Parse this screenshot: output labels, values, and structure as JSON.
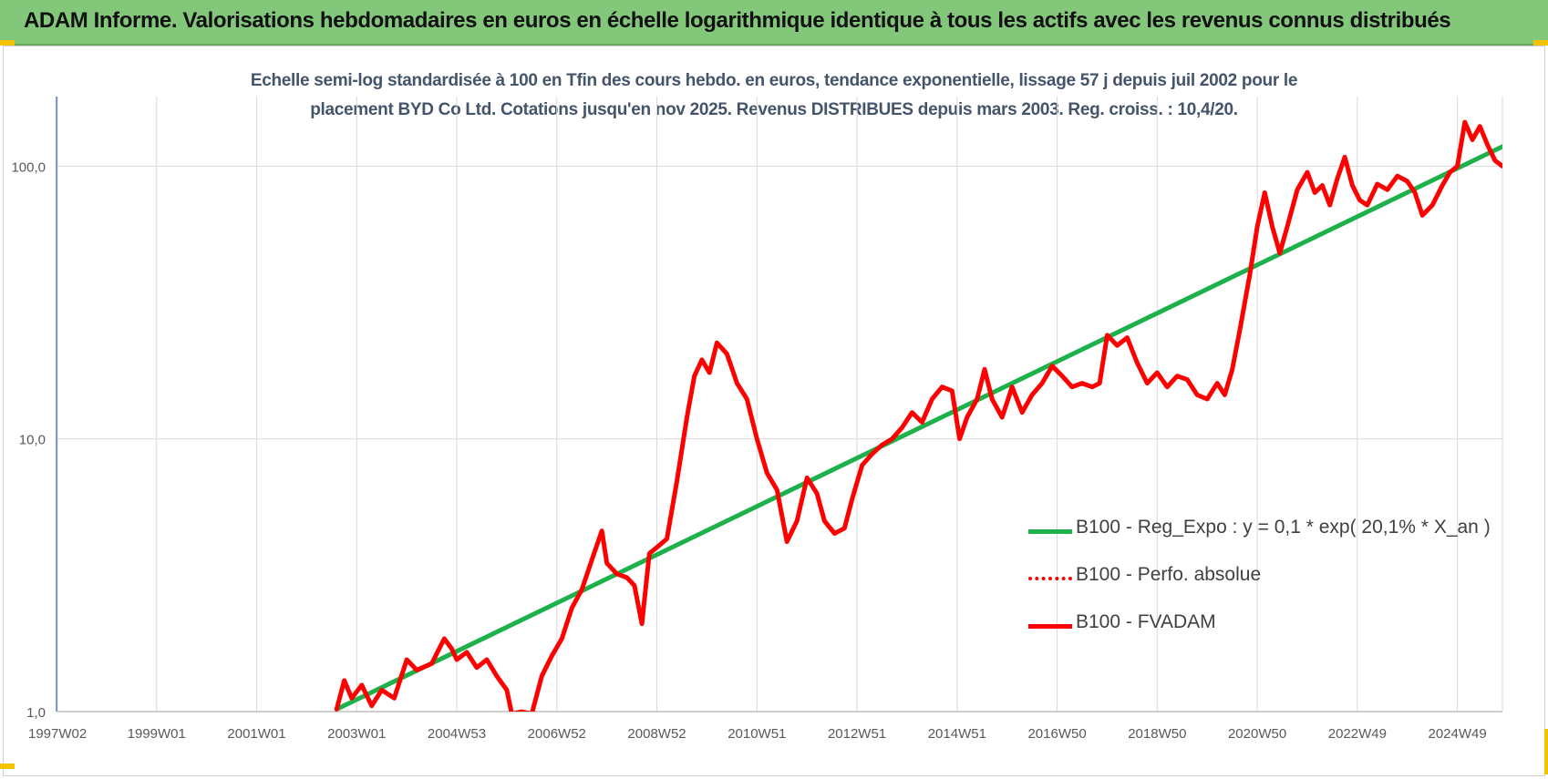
{
  "header": {
    "title": "ADAM Informe. Valorisations hebdomadaires en euros en échelle logarithmique identique à tous les actifs avec les revenus connus distribués"
  },
  "chart_data": {
    "type": "line",
    "title_line1": "Echelle semi-log standardisée à 100 en Tfin des cours hebdo. en euros, tendance exponentielle, lissage 57 j depuis juil 2002 pour le",
    "title_line2": "placement BYD Co Ltd. Cotations jusqu'en nov 2025. Revenus DISTRIBUES depuis mars 2003. Reg. croiss. : 10,4/20.",
    "y_scale": "log",
    "ylim": [
      1,
      180
    ],
    "xlim": [
      1997.0,
      2025.9
    ],
    "y_ticks": [
      {
        "value": 1,
        "label": "1,0"
      },
      {
        "value": 10,
        "label": "10,0"
      },
      {
        "value": 100,
        "label": "100,0"
      }
    ],
    "x_ticks": [
      {
        "value": 1997.02,
        "label": "1997W02"
      },
      {
        "value": 1999.0,
        "label": "1999W01"
      },
      {
        "value": 2001.0,
        "label": "2001W01"
      },
      {
        "value": 2003.0,
        "label": "2003W01"
      },
      {
        "value": 2005.0,
        "label": "2004W53"
      },
      {
        "value": 2007.0,
        "label": "2006W52"
      },
      {
        "value": 2009.0,
        "label": "2008W52"
      },
      {
        "value": 2011.0,
        "label": "2010W51"
      },
      {
        "value": 2013.0,
        "label": "2012W51"
      },
      {
        "value": 2015.0,
        "label": "2014W51"
      },
      {
        "value": 2017.0,
        "label": "2016W50"
      },
      {
        "value": 2019.0,
        "label": "2018W50"
      },
      {
        "value": 2021.0,
        "label": "2020W50"
      },
      {
        "value": 2023.0,
        "label": "2022W49"
      },
      {
        "value": 2025.0,
        "label": "2024W49"
      }
    ],
    "grid": true,
    "legend_position": "bottom-right",
    "series": [
      {
        "name": "B100 - Reg_Expo : y = 0,1 * exp( 20,1% *  X_an )",
        "color": "#1db14b",
        "style": "solid",
        "points": [
          [
            2002.6,
            1.02
          ],
          [
            2025.9,
            118
          ]
        ]
      },
      {
        "name": "B100 - Perfo. absolue",
        "color": "#ff0000",
        "style": "dotted",
        "points": []
      },
      {
        "name": "B100 - FVADAM",
        "color": "#ff0000",
        "style": "solid",
        "points": [
          [
            2002.6,
            1.02
          ],
          [
            2002.75,
            1.3
          ],
          [
            2002.9,
            1.12
          ],
          [
            2003.1,
            1.25
          ],
          [
            2003.3,
            1.05
          ],
          [
            2003.5,
            1.2
          ],
          [
            2003.75,
            1.12
          ],
          [
            2004.0,
            1.55
          ],
          [
            2004.2,
            1.42
          ],
          [
            2004.5,
            1.5
          ],
          [
            2004.75,
            1.85
          ],
          [
            2004.9,
            1.7
          ],
          [
            2005.0,
            1.55
          ],
          [
            2005.2,
            1.65
          ],
          [
            2005.4,
            1.45
          ],
          [
            2005.6,
            1.55
          ],
          [
            2005.8,
            1.35
          ],
          [
            2006.0,
            1.2
          ],
          [
            2006.1,
            0.98
          ],
          [
            2006.3,
            1.0
          ],
          [
            2006.5,
            0.98
          ],
          [
            2006.7,
            1.35
          ],
          [
            2006.9,
            1.6
          ],
          [
            2007.1,
            1.85
          ],
          [
            2007.3,
            2.4
          ],
          [
            2007.5,
            2.8
          ],
          [
            2007.7,
            3.6
          ],
          [
            2007.9,
            4.6
          ],
          [
            2008.0,
            3.5
          ],
          [
            2008.2,
            3.2
          ],
          [
            2008.4,
            3.1
          ],
          [
            2008.55,
            2.9
          ],
          [
            2008.7,
            2.1
          ],
          [
            2008.85,
            3.8
          ],
          [
            2009.0,
            4.0
          ],
          [
            2009.2,
            4.3
          ],
          [
            2009.4,
            7.0
          ],
          [
            2009.6,
            12.0
          ],
          [
            2009.75,
            17.0
          ],
          [
            2009.9,
            19.5
          ],
          [
            2010.05,
            17.5
          ],
          [
            2010.2,
            22.5
          ],
          [
            2010.4,
            20.5
          ],
          [
            2010.6,
            16.0
          ],
          [
            2010.8,
            14.0
          ],
          [
            2011.0,
            10.0
          ],
          [
            2011.2,
            7.5
          ],
          [
            2011.4,
            6.5
          ],
          [
            2011.6,
            4.2
          ],
          [
            2011.8,
            5.0
          ],
          [
            2012.0,
            7.2
          ],
          [
            2012.2,
            6.3
          ],
          [
            2012.35,
            5.0
          ],
          [
            2012.55,
            4.5
          ],
          [
            2012.75,
            4.7
          ],
          [
            2012.9,
            6.0
          ],
          [
            2013.1,
            8.0
          ],
          [
            2013.3,
            8.8
          ],
          [
            2013.5,
            9.5
          ],
          [
            2013.7,
            10.0
          ],
          [
            2013.9,
            11.0
          ],
          [
            2014.1,
            12.5
          ],
          [
            2014.3,
            11.5
          ],
          [
            2014.5,
            14.0
          ],
          [
            2014.7,
            15.5
          ],
          [
            2014.9,
            15.0
          ],
          [
            2015.05,
            10.0
          ],
          [
            2015.2,
            12.0
          ],
          [
            2015.4,
            14.0
          ],
          [
            2015.55,
            18.0
          ],
          [
            2015.7,
            14.0
          ],
          [
            2015.9,
            12.0
          ],
          [
            2016.1,
            15.5
          ],
          [
            2016.3,
            12.5
          ],
          [
            2016.5,
            14.5
          ],
          [
            2016.7,
            16.0
          ],
          [
            2016.9,
            18.5
          ],
          [
            2017.1,
            17.0
          ],
          [
            2017.3,
            15.5
          ],
          [
            2017.5,
            16.0
          ],
          [
            2017.7,
            15.5
          ],
          [
            2017.85,
            16.0
          ],
          [
            2018.0,
            24.0
          ],
          [
            2018.2,
            22.0
          ],
          [
            2018.4,
            23.5
          ],
          [
            2018.6,
            19.0
          ],
          [
            2018.8,
            16.0
          ],
          [
            2019.0,
            17.5
          ],
          [
            2019.2,
            15.5
          ],
          [
            2019.4,
            17.0
          ],
          [
            2019.6,
            16.5
          ],
          [
            2019.8,
            14.5
          ],
          [
            2020.0,
            14.0
          ],
          [
            2020.2,
            16.0
          ],
          [
            2020.35,
            14.5
          ],
          [
            2020.5,
            18.0
          ],
          [
            2020.65,
            25.0
          ],
          [
            2020.85,
            40.0
          ],
          [
            2021.0,
            60.0
          ],
          [
            2021.15,
            80.0
          ],
          [
            2021.3,
            60.0
          ],
          [
            2021.45,
            48.0
          ],
          [
            2021.6,
            60.0
          ],
          [
            2021.8,
            82.0
          ],
          [
            2022.0,
            95.0
          ],
          [
            2022.15,
            80.0
          ],
          [
            2022.3,
            85.0
          ],
          [
            2022.45,
            72.0
          ],
          [
            2022.6,
            90.0
          ],
          [
            2022.75,
            108.0
          ],
          [
            2022.9,
            85.0
          ],
          [
            2023.05,
            75.0
          ],
          [
            2023.2,
            72.0
          ],
          [
            2023.4,
            86.0
          ],
          [
            2023.6,
            82.0
          ],
          [
            2023.8,
            92.0
          ],
          [
            2024.0,
            88.0
          ],
          [
            2024.15,
            80.0
          ],
          [
            2024.3,
            66.0
          ],
          [
            2024.5,
            72.0
          ],
          [
            2024.7,
            85.0
          ],
          [
            2024.85,
            95.0
          ],
          [
            2025.0,
            100.0
          ],
          [
            2025.15,
            145.0
          ],
          [
            2025.3,
            125.0
          ],
          [
            2025.45,
            140.0
          ],
          [
            2025.6,
            120.0
          ],
          [
            2025.75,
            105.0
          ],
          [
            2025.9,
            100.0
          ]
        ]
      }
    ]
  }
}
